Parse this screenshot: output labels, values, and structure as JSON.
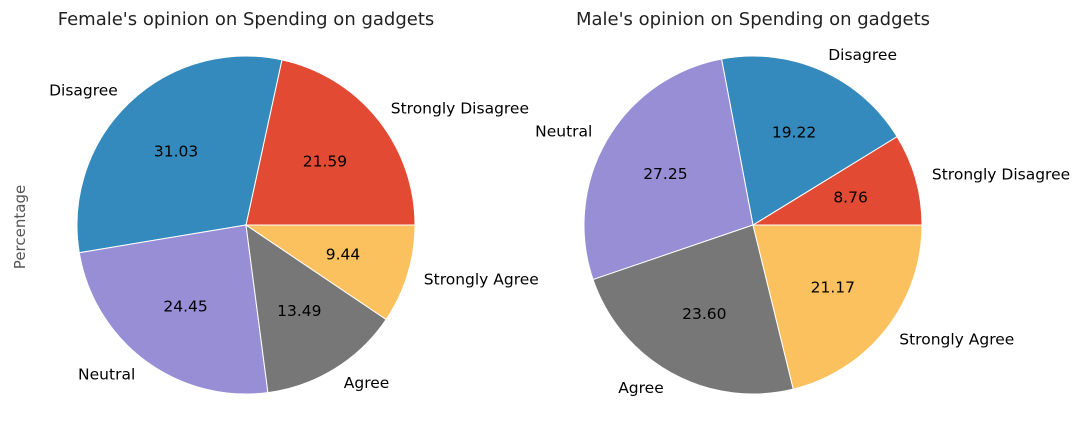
{
  "chart_data": [
    {
      "type": "pie",
      "title": "Female's opinion on Spending on gadgets",
      "ylabel": "Percentage",
      "categories": [
        "Strongly Disagree",
        "Disagree",
        "Neutral",
        "Agree",
        "Strongly Agree"
      ],
      "values": [
        21.59,
        31.03,
        24.45,
        13.49,
        9.44
      ],
      "value_labels": [
        "21.59",
        "31.03",
        "24.45",
        "13.49",
        "9.44"
      ],
      "colors": [
        "#E24A33",
        "#348ABD",
        "#988ED5",
        "#777777",
        "#FBC15E"
      ],
      "start_angle_deg": 0,
      "direction": "counterclockwise"
    },
    {
      "type": "pie",
      "title": "Male's opinion on Spending on gadgets",
      "ylabel": "",
      "categories": [
        "Strongly Disagree",
        "Disagree",
        "Neutral",
        "Agree",
        "Strongly Agree"
      ],
      "values": [
        8.76,
        19.22,
        27.25,
        23.6,
        21.17
      ],
      "value_labels": [
        "8.76",
        "19.22",
        "27.25",
        "23.60",
        "21.17"
      ],
      "colors": [
        "#E24A33",
        "#348ABD",
        "#988ED5",
        "#777777",
        "#FBC15E"
      ],
      "start_angle_deg": 0,
      "direction": "counterclockwise"
    }
  ]
}
